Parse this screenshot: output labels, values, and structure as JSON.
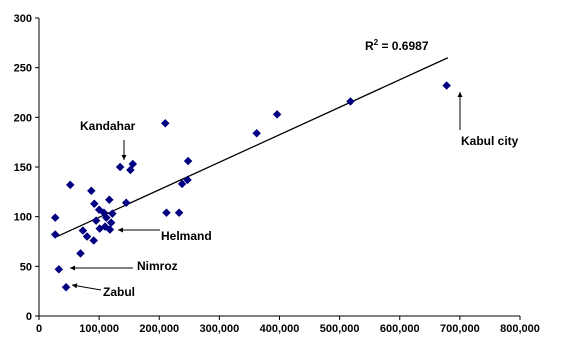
{
  "chart_data": {
    "type": "scatter",
    "title": "",
    "xlabel": "",
    "ylabel": "",
    "xlim": [
      0,
      800000
    ],
    "ylim": [
      0,
      300
    ],
    "xticks": [
      0,
      100000,
      200000,
      300000,
      400000,
      500000,
      600000,
      700000,
      800000
    ],
    "xtick_labels": [
      "0",
      "100,000",
      "200,000",
      "300,000",
      "400,000",
      "500,000",
      "600,000",
      "700,000",
      "800,000"
    ],
    "yticks": [
      0,
      50,
      100,
      150,
      200,
      250,
      300
    ],
    "ytick_labels": [
      "0",
      "50",
      "100",
      "150",
      "200",
      "250",
      "300"
    ],
    "grid": false,
    "marker_color": "#000080",
    "trendline": {
      "type": "linear",
      "x_range": [
        30000,
        680000
      ],
      "y_range": [
        80,
        260
      ],
      "r2_text": "R",
      "r2_sup": "2",
      "r2_value": " = 0.6987"
    },
    "points": [
      {
        "x": 678000,
        "y": 232
      },
      {
        "x": 518000,
        "y": 216
      },
      {
        "x": 396000,
        "y": 203
      },
      {
        "x": 362000,
        "y": 184
      },
      {
        "x": 210000,
        "y": 194
      },
      {
        "x": 248000,
        "y": 156
      },
      {
        "x": 247000,
        "y": 137
      },
      {
        "x": 238000,
        "y": 133
      },
      {
        "x": 212000,
        "y": 104
      },
      {
        "x": 233000,
        "y": 104
      },
      {
        "x": 135000,
        "y": 150
      },
      {
        "x": 156000,
        "y": 153
      },
      {
        "x": 152000,
        "y": 147
      },
      {
        "x": 145000,
        "y": 114
      },
      {
        "x": 52000,
        "y": 132
      },
      {
        "x": 87000,
        "y": 126
      },
      {
        "x": 117000,
        "y": 117
      },
      {
        "x": 92000,
        "y": 113
      },
      {
        "x": 100000,
        "y": 107
      },
      {
        "x": 108000,
        "y": 104
      },
      {
        "x": 122000,
        "y": 103
      },
      {
        "x": 112000,
        "y": 99
      },
      {
        "x": 95000,
        "y": 96
      },
      {
        "x": 120000,
        "y": 94
      },
      {
        "x": 110000,
        "y": 90
      },
      {
        "x": 101000,
        "y": 88
      },
      {
        "x": 118000,
        "y": 87
      },
      {
        "x": 73000,
        "y": 86
      },
      {
        "x": 80000,
        "y": 80
      },
      {
        "x": 91000,
        "y": 76
      },
      {
        "x": 27000,
        "y": 99
      },
      {
        "x": 27000,
        "y": 82
      },
      {
        "x": 69000,
        "y": 63
      },
      {
        "x": 33000,
        "y": 47
      },
      {
        "x": 45000,
        "y": 29
      }
    ],
    "annotations": [
      {
        "label": "Kabul city",
        "target": {
          "x": 678000,
          "y": 232
        }
      },
      {
        "label": "Kandahar",
        "target": {
          "x": 135000,
          "y": 150
        }
      },
      {
        "label": "Helmand",
        "target": {
          "x": 120000,
          "y": 94
        }
      },
      {
        "label": "Nimroz",
        "target": {
          "x": 33000,
          "y": 47
        }
      },
      {
        "label": "Zabul",
        "target": {
          "x": 45000,
          "y": 29
        }
      }
    ]
  }
}
